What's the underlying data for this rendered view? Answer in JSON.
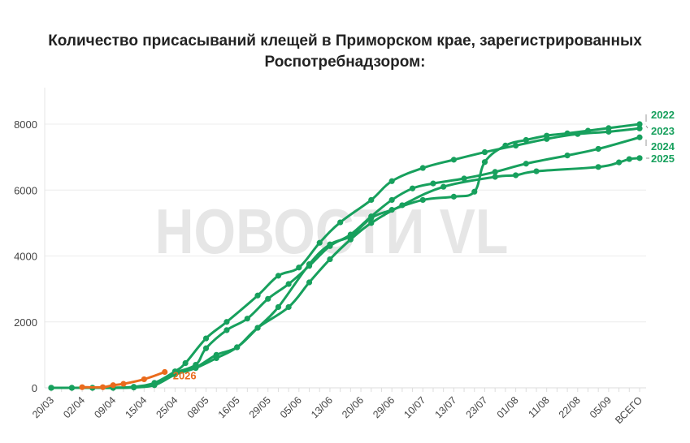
{
  "title_line1": "Количество присасываний клещей в Приморском крае, зарегистрированных",
  "title_line2": "Роспотребнадзором:",
  "watermark": "НОВОСТИ VL",
  "colors": {
    "green": "#17a05d",
    "orange": "#ea6b1c"
  },
  "chart_data": {
    "type": "line",
    "title": "Количество присасываний клещей в Приморском крае, зарегистрированных Роспотребнадзором:",
    "xlabel": "",
    "ylabel": "",
    "ylim": [
      0,
      9000
    ],
    "yticks": [
      0,
      2000,
      4000,
      6000,
      8000
    ],
    "grid": true,
    "legend": "inline-right",
    "category_count": 58,
    "tick_labels": [
      {
        "index": 0,
        "label": "20/03"
      },
      {
        "index": 3,
        "label": "02/04"
      },
      {
        "index": 6,
        "label": "09/04"
      },
      {
        "index": 9,
        "label": "15/04"
      },
      {
        "index": 12,
        "label": "25/04"
      },
      {
        "index": 15,
        "label": "08/05"
      },
      {
        "index": 18,
        "label": "16/05"
      },
      {
        "index": 21,
        "label": "29/05"
      },
      {
        "index": 24,
        "label": "05/06"
      },
      {
        "index": 27,
        "label": "13/06"
      },
      {
        "index": 30,
        "label": "20/06"
      },
      {
        "index": 33,
        "label": "29/06"
      },
      {
        "index": 36,
        "label": "10/07"
      },
      {
        "index": 39,
        "label": "13/07"
      },
      {
        "index": 42,
        "label": "23/07"
      },
      {
        "index": 45,
        "label": "01/08"
      },
      {
        "index": 48,
        "label": "11/08"
      },
      {
        "index": 51,
        "label": "22/08"
      },
      {
        "index": 54,
        "label": "05/09"
      },
      {
        "index": 57,
        "label": "ВСЕГО"
      }
    ],
    "series": [
      {
        "name": "2022",
        "color": "#17a05d",
        "points": [
          [
            0,
            0
          ],
          [
            2,
            0
          ],
          [
            4,
            0
          ],
          [
            6,
            0
          ],
          [
            8,
            20
          ],
          [
            10,
            120
          ],
          [
            12,
            430
          ],
          [
            14,
            620
          ],
          [
            16,
            1000
          ],
          [
            18,
            1230
          ],
          [
            20,
            1820
          ],
          [
            22,
            2450
          ],
          [
            25,
            3750
          ],
          [
            27,
            4350
          ],
          [
            29,
            4600
          ],
          [
            31,
            5150
          ],
          [
            33,
            5400
          ],
          [
            36,
            5700
          ],
          [
            39,
            5800
          ],
          [
            41,
            5950
          ],
          [
            42,
            6850
          ],
          [
            44,
            7350
          ],
          [
            46,
            7520
          ],
          [
            48,
            7650
          ],
          [
            50,
            7720
          ],
          [
            52,
            7800
          ],
          [
            54,
            7880
          ],
          [
            57,
            8000
          ]
        ]
      },
      {
        "name": "2023",
        "color": "#17a05d",
        "points": [
          [
            0,
            0
          ],
          [
            2,
            0
          ],
          [
            4,
            0
          ],
          [
            6,
            0
          ],
          [
            8,
            30
          ],
          [
            10,
            150
          ],
          [
            12,
            500
          ],
          [
            13,
            750
          ],
          [
            15,
            1500
          ],
          [
            17,
            2000
          ],
          [
            20,
            2800
          ],
          [
            22,
            3400
          ],
          [
            24,
            3650
          ],
          [
            26,
            4400
          ],
          [
            28,
            5020
          ],
          [
            31,
            5700
          ],
          [
            33,
            6270
          ],
          [
            36,
            6670
          ],
          [
            39,
            6920
          ],
          [
            42,
            7150
          ],
          [
            45,
            7350
          ],
          [
            48,
            7550
          ],
          [
            51,
            7700
          ],
          [
            54,
            7770
          ],
          [
            57,
            7870
          ]
        ]
      },
      {
        "name": "2024",
        "color": "#17a05d",
        "points": [
          [
            0,
            0
          ],
          [
            2,
            0
          ],
          [
            4,
            0
          ],
          [
            6,
            0
          ],
          [
            8,
            20
          ],
          [
            10,
            100
          ],
          [
            12,
            450
          ],
          [
            14,
            700
          ],
          [
            15,
            1200
          ],
          [
            17,
            1750
          ],
          [
            19,
            2100
          ],
          [
            21,
            2700
          ],
          [
            23,
            3150
          ],
          [
            25,
            3700
          ],
          [
            27,
            4300
          ],
          [
            29,
            4650
          ],
          [
            31,
            5200
          ],
          [
            33,
            5700
          ],
          [
            35,
            6050
          ],
          [
            37,
            6200
          ],
          [
            40,
            6350
          ],
          [
            43,
            6550
          ],
          [
            46,
            6800
          ],
          [
            50,
            7050
          ],
          [
            53,
            7250
          ],
          [
            57,
            7600
          ]
        ]
      },
      {
        "name": "2025",
        "color": "#17a05d",
        "points": [
          [
            0,
            0
          ],
          [
            2,
            0
          ],
          [
            4,
            0
          ],
          [
            6,
            0
          ],
          [
            8,
            10
          ],
          [
            10,
            80
          ],
          [
            12,
            400
          ],
          [
            14,
            600
          ],
          [
            16,
            900
          ],
          [
            18,
            1230
          ],
          [
            20,
            1820
          ],
          [
            23,
            2450
          ],
          [
            25,
            3200
          ],
          [
            27,
            3900
          ],
          [
            29,
            4500
          ],
          [
            31,
            5000
          ],
          [
            34,
            5540
          ],
          [
            38,
            6100
          ],
          [
            43,
            6400
          ],
          [
            45,
            6450
          ],
          [
            47,
            6570
          ],
          [
            53,
            6700
          ],
          [
            55,
            6840
          ],
          [
            56,
            6940
          ],
          [
            57,
            6970
          ]
        ]
      },
      {
        "name": "2026",
        "color": "#ea6b1c",
        "points": [
          [
            3,
            20
          ],
          [
            5,
            20
          ],
          [
            6,
            80
          ],
          [
            7,
            120
          ],
          [
            9,
            260
          ],
          [
            11,
            480
          ]
        ]
      }
    ]
  }
}
